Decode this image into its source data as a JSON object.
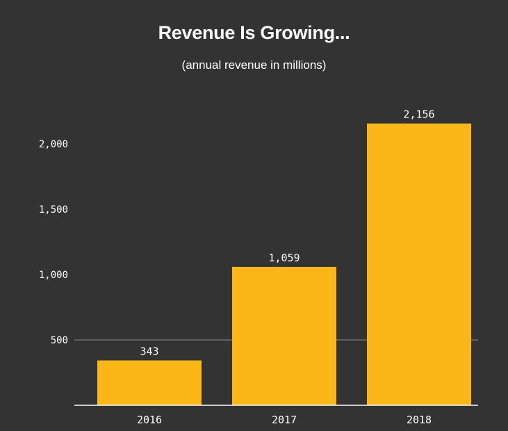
{
  "chart_data": {
    "type": "bar",
    "title": "Revenue Is Growing...",
    "subtitle": "(annual revenue in millions)",
    "categories": [
      "2016",
      "2017",
      "2018"
    ],
    "values": [
      343,
      1059,
      2156
    ],
    "data_labels": [
      "343",
      "1,059",
      "2,156"
    ],
    "y_ticks": [
      500,
      1000,
      1500,
      2000
    ],
    "y_tick_labels": [
      "500",
      "1,000",
      "1,500",
      "2,000"
    ],
    "ylim": [
      0,
      2250
    ],
    "xlabel": "",
    "ylabel": "",
    "grid": "horizontal line at 500 only",
    "legend": "none",
    "colors": {
      "background": "#333333",
      "bar": "#fbb718",
      "text": "#ffffff",
      "axis": "#ffffff",
      "gridline": "#8a8a8a"
    }
  }
}
